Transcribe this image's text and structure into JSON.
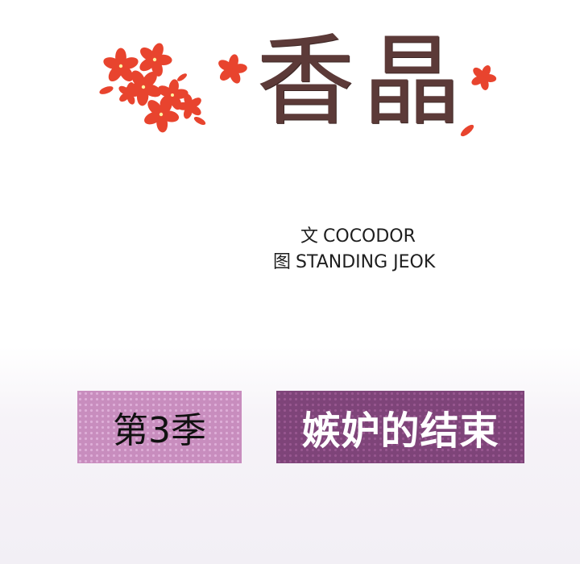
{
  "title": {
    "main": "香晶"
  },
  "credits": {
    "writer_prefix": "文",
    "writer": "COCODOR",
    "artist_prefix": "图",
    "artist": "STANDING JEOK"
  },
  "season": {
    "label": "第3季"
  },
  "episode": {
    "label": "嫉妒的结束"
  },
  "colors": {
    "flower": "#e8442e",
    "title_text": "#5c3a38",
    "season_bg": "#c88dbe",
    "episode_bg": "#7e4479"
  },
  "icons": [
    "flower-cluster-icon",
    "flower-icon",
    "petal-icon"
  ]
}
